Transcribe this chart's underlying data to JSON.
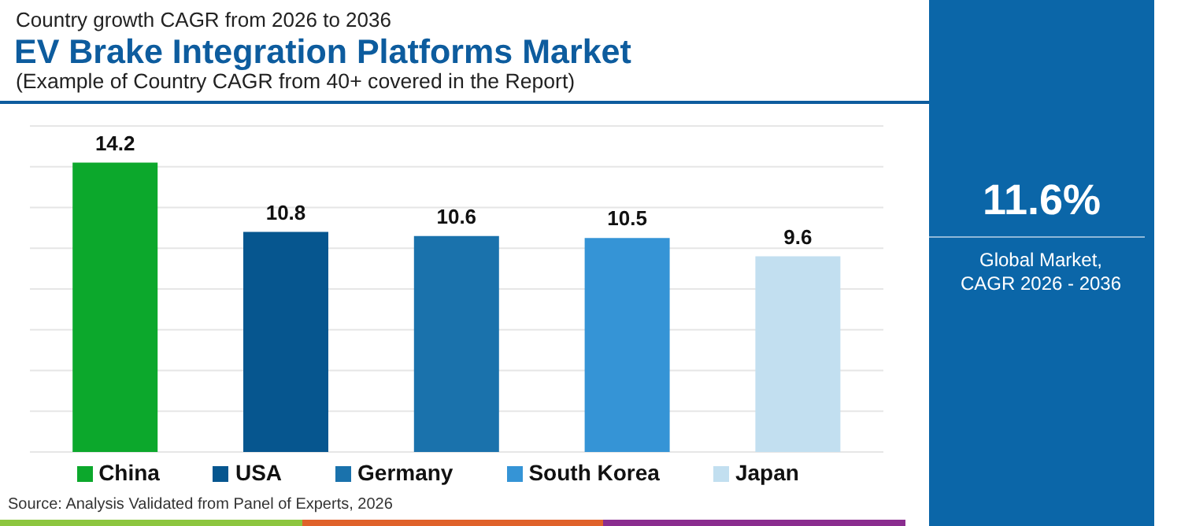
{
  "chart_data": [
    {
      "type": "bar",
      "title": "EV Brake Integration Platforms Market",
      "subtitle": "(Example of Country CAGR from 40+ covered in the Report)",
      "annotations": [
        "Country growth CAGR from 2026 to 2036",
        "Source: Analysis Validated from Panel of Experts, 2026"
      ],
      "categories": [
        null,
        null,
        null,
        null,
        null
      ],
      "series": [
        {
          "name": "China",
          "color": "#0ca82c",
          "values": [
            14.2,
            null,
            null,
            null,
            null
          ]
        },
        {
          "name": "USA",
          "color": "#06568f",
          "values": [
            null,
            10.8,
            null,
            null,
            null
          ]
        },
        {
          "name": "Germany",
          "color": "#1a72ac",
          "values": [
            null,
            null,
            10.6,
            null,
            null
          ]
        },
        {
          "name": "South Korea",
          "color": "#3594d6",
          "values": [
            null,
            null,
            null,
            10.5,
            null
          ]
        },
        {
          "name": "Japan",
          "color": "#c2dff0",
          "values": [
            null,
            null,
            null,
            null,
            9.6
          ]
        }
      ],
      "stacked": true,
      "ylim": [
        0,
        16
      ],
      "yticks": [
        {
          "value": 0,
          "label": null
        },
        {
          "value": 2,
          "label": null
        },
        {
          "value": 4,
          "label": null
        },
        {
          "value": 6,
          "label": null
        },
        {
          "value": 8,
          "label": null
        },
        {
          "value": 10,
          "label": null
        },
        {
          "value": 12,
          "label": null
        },
        {
          "value": 14,
          "label": null
        },
        {
          "value": 16,
          "label": null
        }
      ],
      "grid": "y",
      "legend": "bottom",
      "tick_labels": false,
      "data_labels": true
    },
    {
      "type": "other",
      "title": "11.6%",
      "annotations": [
        "Global Market, CAGR 2026 - 2036"
      ]
    }
  ]
}
